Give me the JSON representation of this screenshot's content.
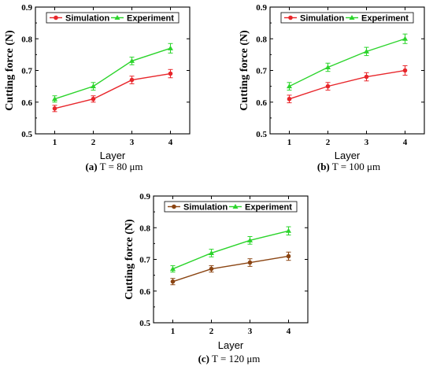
{
  "chart_data": [
    {
      "type": "line",
      "caption_label": "(a)",
      "caption_text": " T = 80 μm",
      "xlabel": "Layer",
      "ylabel": "Cutting force (N)",
      "x": [
        1,
        2,
        3,
        4
      ],
      "ylim": [
        0.5,
        0.9
      ],
      "yticks": [
        "0.5",
        "0.6",
        "0.7",
        "0.8",
        "0.9"
      ],
      "xticks": [
        "1",
        "2",
        "3",
        "4"
      ],
      "grid": false,
      "legend": "top",
      "series": [
        {
          "name": "Simulation",
          "values": [
            0.58,
            0.61,
            0.67,
            0.69
          ],
          "errors": [
            0.01,
            0.01,
            0.012,
            0.013
          ],
          "color": "#e8262b",
          "marker": "circle"
        },
        {
          "name": "Experiment",
          "values": [
            0.61,
            0.65,
            0.73,
            0.77
          ],
          "errors": [
            0.01,
            0.012,
            0.012,
            0.015
          ],
          "color": "#2bd42b",
          "marker": "triangle"
        }
      ]
    },
    {
      "type": "line",
      "caption_label": "(b)",
      "caption_text": " T = 100 μm",
      "xlabel": "Layer",
      "ylabel": "Cutting force (N)",
      "x": [
        1,
        2,
        3,
        4
      ],
      "ylim": [
        0.5,
        0.9
      ],
      "yticks": [
        "0.5",
        "0.6",
        "0.7",
        "0.8",
        "0.9"
      ],
      "xticks": [
        "1",
        "2",
        "3",
        "4"
      ],
      "grid": false,
      "legend": "top",
      "series": [
        {
          "name": "Simulation",
          "values": [
            0.61,
            0.65,
            0.68,
            0.7
          ],
          "errors": [
            0.012,
            0.012,
            0.013,
            0.015
          ],
          "color": "#e8262b",
          "marker": "circle"
        },
        {
          "name": "Experiment",
          "values": [
            0.65,
            0.71,
            0.76,
            0.8
          ],
          "errors": [
            0.012,
            0.013,
            0.013,
            0.015
          ],
          "color": "#2bd42b",
          "marker": "triangle"
        }
      ]
    },
    {
      "type": "line",
      "caption_label": "(c)",
      "caption_text": " T = 120 μm",
      "xlabel": "Layer",
      "ylabel": "Cutting force (N)",
      "x": [
        1,
        2,
        3,
        4
      ],
      "ylim": [
        0.5,
        0.9
      ],
      "yticks": [
        "0.5",
        "0.6",
        "0.7",
        "0.8",
        "0.9"
      ],
      "xticks": [
        "1",
        "2",
        "3",
        "4"
      ],
      "grid": false,
      "legend": "top",
      "series": [
        {
          "name": "Simulation",
          "values": [
            0.63,
            0.67,
            0.69,
            0.71
          ],
          "errors": [
            0.01,
            0.01,
            0.012,
            0.013
          ],
          "color": "#8b4513",
          "marker": "circle"
        },
        {
          "name": "Experiment",
          "values": [
            0.67,
            0.72,
            0.76,
            0.79
          ],
          "errors": [
            0.01,
            0.012,
            0.012,
            0.013
          ],
          "color": "#2bd42b",
          "marker": "triangle"
        }
      ]
    }
  ]
}
